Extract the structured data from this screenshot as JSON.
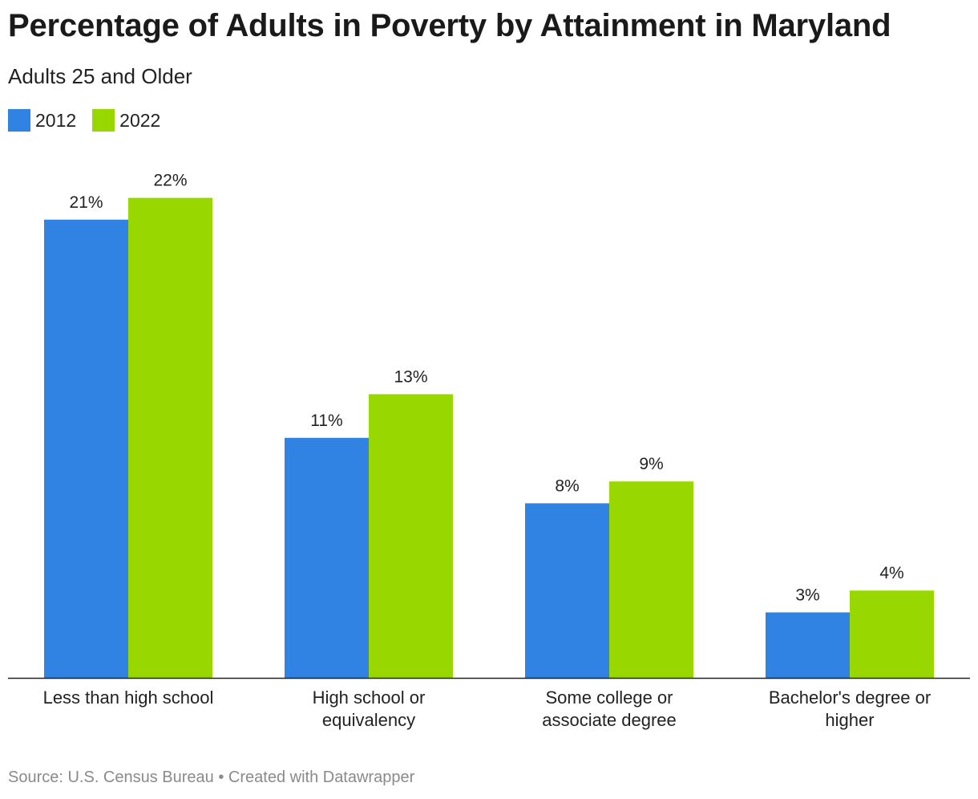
{
  "header": {
    "title": "Percentage of Adults in Poverty by Attainment in Maryland",
    "subtitle": "Adults 25 and Older"
  },
  "legend": [
    {
      "label": "2012",
      "color": "#3083e3"
    },
    {
      "label": "2022",
      "color": "#99d700"
    }
  ],
  "chart_data": {
    "type": "bar",
    "title": "Percentage of Adults in Poverty by Attainment in Maryland",
    "subtitle": "Adults 25 and Older",
    "xlabel": "",
    "ylabel": "",
    "ylim": [
      0,
      22
    ],
    "grid": false,
    "legend_position": "top-left",
    "categories": [
      [
        "Less than high school"
      ],
      [
        "High school or",
        "equivalency"
      ],
      [
        "Some college or",
        "associate degree"
      ],
      [
        "Bachelor's degree or",
        "higher"
      ]
    ],
    "series": [
      {
        "name": "2012",
        "color": "#3083e3",
        "values": [
          21,
          11,
          8,
          3
        ],
        "labels": [
          "21%",
          "11%",
          "8%",
          "3%"
        ]
      },
      {
        "name": "2022",
        "color": "#99d700",
        "values": [
          22,
          13,
          9,
          4
        ],
        "labels": [
          "22%",
          "13%",
          "9%",
          "4%"
        ]
      }
    ]
  },
  "footer": {
    "source": "Source: U.S. Census Bureau • Created with Datawrapper"
  }
}
